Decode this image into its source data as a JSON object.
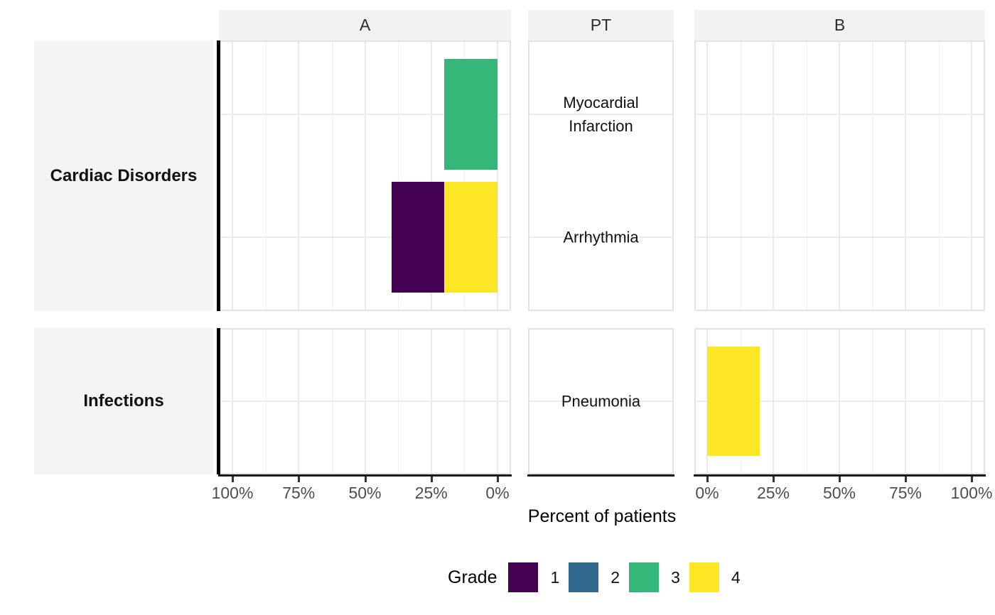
{
  "chart_data": {
    "type": "bar",
    "subtype": "horizontal-stacked-butterfly-faceted",
    "title": "",
    "xlabel": "Percent of patients",
    "facet_columns": [
      {
        "label": "A"
      },
      {
        "label": "PT"
      },
      {
        "label": "B"
      }
    ],
    "facet_rows": [
      {
        "soc": "Cardiac Disorders",
        "pts": [
          "Myocardial Infarction",
          "Arrhythmia"
        ]
      },
      {
        "soc": "Infections",
        "pts": [
          "Pneumonia"
        ]
      }
    ],
    "x_axis": {
      "title": "Percent of patients",
      "range_pct": [
        0,
        100
      ],
      "panel_A_direction": "reversed",
      "panel_A_tick_labels": [
        "100%",
        "75%",
        "50%",
        "25%",
        "0%"
      ],
      "panel_A_tick_pcts": [
        100,
        75,
        50,
        25,
        0
      ],
      "panel_B_tick_labels": [
        "0%",
        "25%",
        "50%",
        "75%",
        "100%"
      ],
      "panel_B_tick_pcts": [
        0,
        25,
        50,
        75,
        100
      ],
      "minor_tick_pcts": [
        12.5,
        37.5,
        62.5,
        87.5
      ]
    },
    "bars": [
      {
        "arm": "A",
        "soc": "Cardiac Disorders",
        "pt": "Myocardial Infarction",
        "segments": [
          {
            "grade": "3",
            "percent": 20
          }
        ]
      },
      {
        "arm": "A",
        "soc": "Cardiac Disorders",
        "pt": "Arrhythmia",
        "segments": [
          {
            "grade": "4",
            "percent": 20
          },
          {
            "grade": "1",
            "percent": 20
          }
        ]
      },
      {
        "arm": "B",
        "soc": "Infections",
        "pt": "Pneumonia",
        "segments": [
          {
            "grade": "4",
            "percent": 20
          }
        ]
      }
    ],
    "legend": {
      "title": "Grade",
      "entries": [
        {
          "label": "1",
          "color": "#440154"
        },
        {
          "label": "2",
          "color": "#31688E"
        },
        {
          "label": "3",
          "color": "#35B779"
        },
        {
          "label": "4",
          "color": "#FDE725"
        }
      ]
    },
    "grid": true,
    "panel_background": "#FFFFFF",
    "strip_background": "#F2F2F2"
  }
}
